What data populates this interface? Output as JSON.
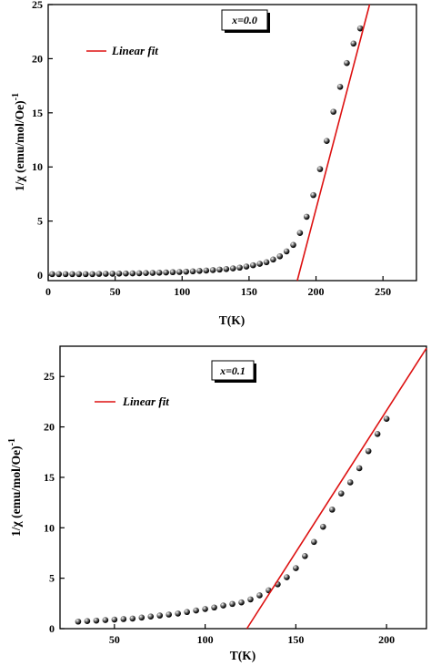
{
  "colors": {
    "fit_line": "#dd1111",
    "marker": "#111111",
    "axis": "#000000",
    "background": "#ffffff"
  },
  "chart_data": [
    {
      "type": "scatter",
      "tag": "x=0.0",
      "xlabel": "T(K)",
      "ylabel": "1/χ (emu/mol/Oe)",
      "ylabel_sup": "-1",
      "xlim": [
        0,
        275
      ],
      "ylim": [
        -0.5,
        25
      ],
      "xticks": [
        0,
        50,
        100,
        150,
        200,
        250
      ],
      "yticks": [
        0,
        5,
        10,
        15,
        20,
        25
      ],
      "legend": {
        "label": "Linear fit",
        "position": "top-left"
      },
      "series": [
        {
          "kind": "points",
          "x": [
            3,
            8,
            13,
            18,
            23,
            28,
            33,
            38,
            43,
            48,
            53,
            58,
            63,
            68,
            73,
            78,
            83,
            88,
            93,
            98,
            103,
            108,
            113,
            118,
            123,
            128,
            133,
            138,
            143,
            148,
            153,
            158,
            163,
            168,
            173,
            178,
            183,
            188,
            193,
            198,
            203,
            208,
            213,
            218,
            223,
            228,
            233
          ],
          "y": [
            0.1,
            0.1,
            0.1,
            0.1,
            0.1,
            0.1,
            0.1,
            0.12,
            0.13,
            0.14,
            0.15,
            0.16,
            0.17,
            0.18,
            0.2,
            0.21,
            0.23,
            0.25,
            0.28,
            0.3,
            0.33,
            0.36,
            0.4,
            0.43,
            0.47,
            0.52,
            0.57,
            0.63,
            0.7,
            0.8,
            0.92,
            1.05,
            1.2,
            1.45,
            1.75,
            2.2,
            2.8,
            3.9,
            5.4,
            7.4,
            9.8,
            12.4,
            15.1,
            17.4,
            19.6,
            21.4,
            22.8
          ]
        },
        {
          "kind": "line",
          "name": "Linear fit",
          "x": [
            186,
            240
          ],
          "y": [
            -0.5,
            25
          ]
        }
      ]
    },
    {
      "type": "scatter",
      "tag": "x=0.1",
      "xlabel": "T(K)",
      "ylabel": "1/χ (emu/mol/Oe)",
      "ylabel_sup": "-1",
      "xlim": [
        20,
        222
      ],
      "ylim": [
        0,
        28
      ],
      "xticks": [
        50,
        100,
        150,
        200
      ],
      "yticks": [
        0,
        5,
        10,
        15,
        20,
        25
      ],
      "legend": {
        "label": "Linear fit",
        "position": "top-left"
      },
      "series": [
        {
          "kind": "points",
          "x": [
            30,
            35,
            40,
            45,
            50,
            55,
            60,
            65,
            70,
            75,
            80,
            85,
            90,
            95,
            100,
            105,
            110,
            115,
            120,
            125,
            130,
            135,
            140,
            145,
            150,
            155,
            160,
            165,
            170,
            175,
            180,
            185,
            190,
            195,
            200
          ],
          "y": [
            0.7,
            0.75,
            0.8,
            0.85,
            0.9,
            0.95,
            1.0,
            1.1,
            1.2,
            1.3,
            1.4,
            1.5,
            1.65,
            1.8,
            1.95,
            2.1,
            2.3,
            2.45,
            2.6,
            2.9,
            3.3,
            3.8,
            4.4,
            5.1,
            6.0,
            7.2,
            8.6,
            10.1,
            11.8,
            13.4,
            14.5,
            15.9,
            17.6,
            19.3,
            20.8
          ]
        },
        {
          "kind": "line",
          "name": "Linear fit",
          "x": [
            123,
            222
          ],
          "y": [
            0,
            27.8
          ]
        }
      ]
    }
  ]
}
